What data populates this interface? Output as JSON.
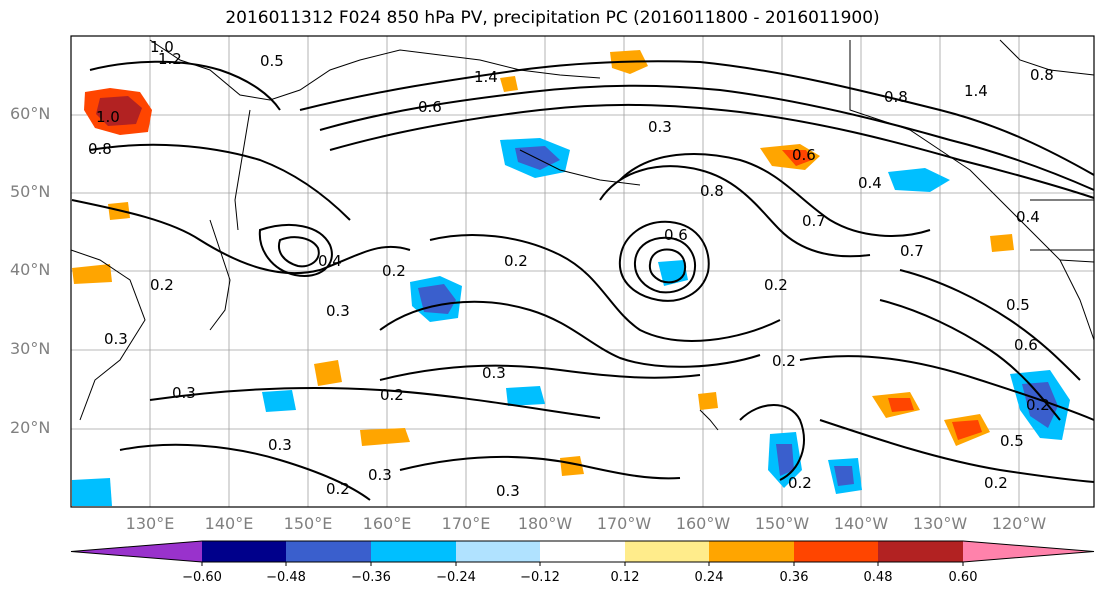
{
  "title": "2016011312 F024 850 hPa PV, precipitation PC (2016011800 - 2016011900)",
  "map": {
    "lat_labels": [
      "60°N",
      "50°N",
      "40°N",
      "30°N",
      "20°N"
    ],
    "lon_labels": [
      "130°E",
      "140°E",
      "150°E",
      "160°E",
      "170°E",
      "180°W",
      "170°W",
      "160°W",
      "150°W",
      "140°W",
      "130°W",
      "120°W"
    ],
    "contour_labels": [
      "1.0",
      "1.2",
      "0.5",
      "1.0",
      "0.8",
      "1.4",
      "0.6",
      "0.3",
      "0.8",
      "1.4",
      "0.8",
      "0.4",
      "0.6",
      "0.8",
      "0.7",
      "0.6",
      "0.4",
      "0.2",
      "0.2",
      "0.3",
      "0.2",
      "0.7",
      "0.2",
      "0.5",
      "0.6",
      "0.3",
      "0.2",
      "0.3",
      "0.2",
      "0.3",
      "0.2",
      "0.5",
      "0.2",
      "0.3",
      "0.3",
      "0.3",
      "0.2",
      "0.4",
      "0.2"
    ],
    "land_color": "#ffffff",
    "contour_color": "#000000",
    "grid_color": "#a0a0a0"
  },
  "colorbar": {
    "ticks": [
      "−0.60",
      "−0.48",
      "−0.36",
      "−0.24",
      "−0.12",
      "0.12",
      "0.24",
      "0.36",
      "0.48",
      "0.60"
    ],
    "colors": [
      "#9932cc",
      "#00008b",
      "#3a5fcd",
      "#00bfff",
      "#b0e2ff",
      "#ffffff",
      "#ffec8b",
      "#ffa500",
      "#ff4500",
      "#b22222",
      "#ff82ab"
    ]
  }
}
